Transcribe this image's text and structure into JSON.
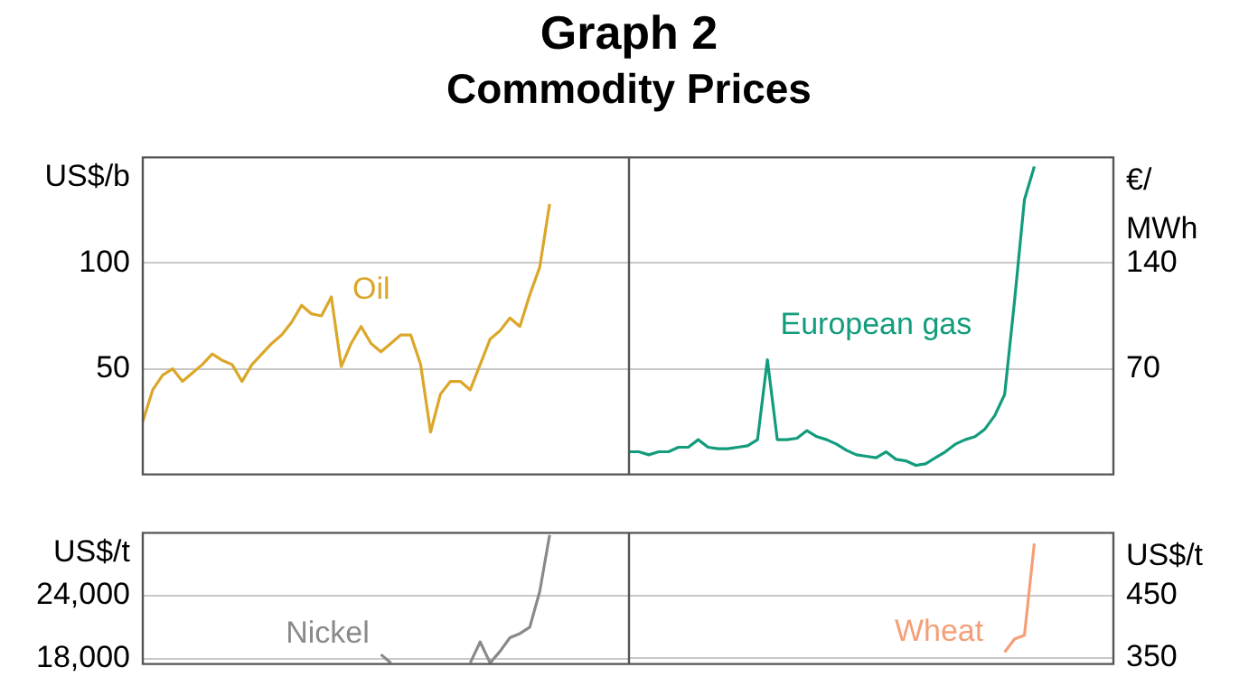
{
  "chart_data": [
    {
      "type": "line",
      "title": "Graph 2",
      "subtitle": "Commodity Prices",
      "ylabel": "US$/b",
      "ylim": [
        0,
        150
      ],
      "yticks": [
        50,
        100
      ],
      "grid": "y",
      "tick_labels": "y",
      "categories": [
        null,
        null,
        null,
        null,
        null,
        null,
        null,
        null,
        null,
        null,
        null,
        null,
        null,
        null,
        null,
        null,
        null,
        null,
        null,
        null,
        null,
        null,
        null,
        null,
        null,
        null,
        null,
        null,
        null,
        null,
        null,
        null,
        null,
        null,
        null,
        null,
        null,
        null,
        null,
        null,
        null,
        null,
        null,
        null,
        null,
        null,
        null,
        null,
        null,
        null
      ],
      "series": [
        {
          "name": "Oil",
          "color": "#dba72a",
          "values": [
            25,
            40,
            47,
            50,
            44,
            48,
            52,
            57,
            54,
            52,
            44,
            52,
            57,
            62,
            66,
            72,
            80,
            76,
            75,
            84,
            51,
            62,
            70,
            62,
            58,
            62,
            66,
            66,
            52,
            20,
            38,
            44,
            44,
            40,
            52,
            64,
            68,
            74,
            70,
            85,
            98,
            128,
            null,
            null,
            null,
            null,
            null,
            null,
            null,
            null
          ]
        }
      ]
    },
    {
      "type": "line",
      "ylabel": "€/\nMWh",
      "ylim": [
        0,
        210
      ],
      "yticks": [
        70,
        140
      ],
      "grid": "y",
      "tick_labels": "y",
      "categories": [
        null,
        null,
        null,
        null,
        null,
        null,
        null,
        null,
        null,
        null,
        null,
        null,
        null,
        null,
        null,
        null,
        null,
        null,
        null,
        null,
        null,
        null,
        null,
        null,
        null,
        null,
        null,
        null,
        null,
        null,
        null,
        null,
        null,
        null,
        null,
        null,
        null,
        null,
        null,
        null,
        null,
        null,
        null,
        null,
        null,
        null,
        null,
        null,
        null,
        null
      ],
      "series": [
        {
          "name": "European gas",
          "color": "#129c7c",
          "values": [
            15,
            15,
            13,
            15,
            15,
            18,
            18,
            23,
            18,
            17,
            17,
            18,
            19,
            23,
            76,
            23,
            23,
            24,
            29,
            25,
            23,
            20,
            16,
            13,
            12,
            11,
            15,
            10,
            9,
            6,
            7,
            11,
            15,
            20,
            23,
            25,
            30,
            39,
            53,
            115,
            182,
            204,
            null,
            null,
            null,
            null,
            null,
            null,
            null,
            null
          ]
        }
      ]
    },
    {
      "type": "line",
      "ylabel": "US$/t",
      "ylim": [
        17500,
        30000
      ],
      "yticks": [
        {
          "value": 18000,
          "label": "18,000"
        },
        {
          "value": 24000,
          "label": "24,000"
        }
      ],
      "grid": "y",
      "tick_labels": "y",
      "categories": [
        null,
        null,
        null,
        null,
        null,
        null,
        null,
        null,
        null,
        null,
        null,
        null,
        null,
        null,
        null,
        null,
        null,
        null,
        null,
        null,
        null,
        null,
        null,
        null,
        null,
        null,
        null,
        null,
        null,
        null,
        null,
        null,
        null,
        null,
        null,
        null,
        null,
        null,
        null,
        null,
        null,
        null,
        null,
        null,
        null,
        null,
        null,
        null,
        null,
        null
      ],
      "series": [
        {
          "name": "Nickel",
          "color": "#8a8a8a",
          "values": [
            null,
            null,
            null,
            null,
            null,
            null,
            null,
            null,
            null,
            null,
            null,
            null,
            null,
            null,
            null,
            null,
            null,
            null,
            null,
            null,
            null,
            null,
            null,
            null,
            18400,
            17600,
            null,
            null,
            null,
            null,
            null,
            null,
            null,
            17600,
            19600,
            17600,
            18700,
            20000,
            20400,
            21000,
            24400,
            29800,
            null,
            null,
            null,
            null,
            null,
            null,
            null,
            null
          ]
        }
      ]
    },
    {
      "type": "line",
      "ylabel": "US$/t",
      "ylim": [
        340,
        550
      ],
      "yticks": [
        350,
        450
      ],
      "grid": "y",
      "tick_labels": "y",
      "categories": [
        null,
        null,
        null,
        null,
        null,
        null,
        null,
        null,
        null,
        null,
        null,
        null,
        null,
        null,
        null,
        null,
        null,
        null,
        null,
        null,
        null,
        null,
        null,
        null,
        null,
        null,
        null,
        null,
        null,
        null,
        null,
        null,
        null,
        null,
        null,
        null,
        null,
        null,
        null,
        null,
        null,
        null,
        null,
        null,
        null,
        null,
        null,
        null,
        null,
        null
      ],
      "series": [
        {
          "name": "Wheat",
          "color": "#f59f78",
          "values": [
            null,
            null,
            null,
            null,
            null,
            null,
            null,
            null,
            null,
            null,
            null,
            null,
            null,
            null,
            null,
            null,
            null,
            null,
            null,
            null,
            null,
            null,
            null,
            null,
            null,
            null,
            null,
            null,
            null,
            null,
            null,
            null,
            null,
            null,
            null,
            null,
            null,
            null,
            359,
            380,
            386,
            533,
            null,
            null,
            null,
            null,
            null,
            null,
            null,
            null
          ]
        }
      ]
    }
  ]
}
